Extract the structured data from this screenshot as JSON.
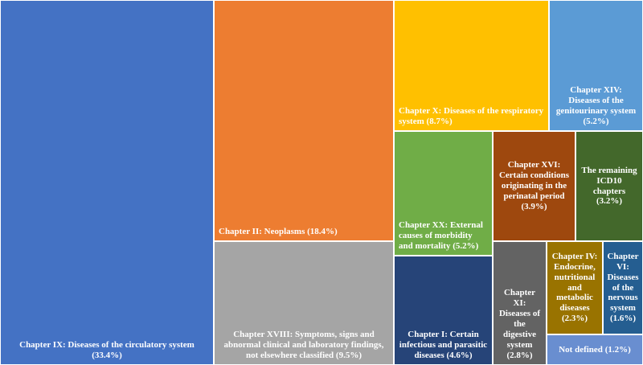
{
  "chart_data": {
    "type": "treemap",
    "title": "",
    "items": [
      {
        "label": "Chapter IX: Diseases of the circulatory system",
        "value": 33.4,
        "pct_label": "(33.4%)",
        "color": "#4472C4"
      },
      {
        "label": "Chapter II: Neoplasms",
        "value": 18.4,
        "pct_label": "(18.4%)",
        "color": "#ED7D31"
      },
      {
        "label": "Chapter XVIII: Symptoms, signs and abnormal clinical and laboratory findings, not elsewhere classified",
        "value": 9.5,
        "pct_label": "(9.5%)",
        "color": "#A5A5A5"
      },
      {
        "label": "Chapter X: Diseases of the respiratory system",
        "value": 8.7,
        "pct_label": "(8.7%)",
        "color": "#FFC000"
      },
      {
        "label": "Chapter XIV: Diseases of the genitourinary system",
        "value": 5.2,
        "pct_label": "(5.2%)",
        "color": "#5B9BD5"
      },
      {
        "label": "Chapter XX: External causes of morbidity and mortality",
        "value": 5.2,
        "pct_label": "(5.2%)",
        "color": "#70AD47"
      },
      {
        "label": "Chapter I: Certain infectious and parasitic diseases",
        "value": 4.6,
        "pct_label": "(4.6%)",
        "color": "#264478"
      },
      {
        "label": "Chapter XVI: Certain conditions originating in the perinatal period",
        "value": 3.9,
        "pct_label": "(3.9%)",
        "color": "#9E480E"
      },
      {
        "label": "The remaining ICD10 chapters",
        "value": 3.2,
        "pct_label": "(3.2%)",
        "color": "#43682B"
      },
      {
        "label": "Chapter XI: Diseases of the digestive system",
        "value": 2.8,
        "pct_label": "(2.8%)",
        "color": "#636363"
      },
      {
        "label": "Chapter IV: Endocrine, nutritional and metabolic diseases",
        "value": 2.3,
        "pct_label": "(2.3%)",
        "color": "#997300"
      },
      {
        "label": "Chapter VI: Diseases of the nervous system",
        "value": 1.6,
        "pct_label": "(1.6%)",
        "color": "#255E91"
      },
      {
        "label": "Not defined",
        "value": 1.2,
        "pct_label": "(1.2%)",
        "color": "#698ED0"
      }
    ]
  }
}
